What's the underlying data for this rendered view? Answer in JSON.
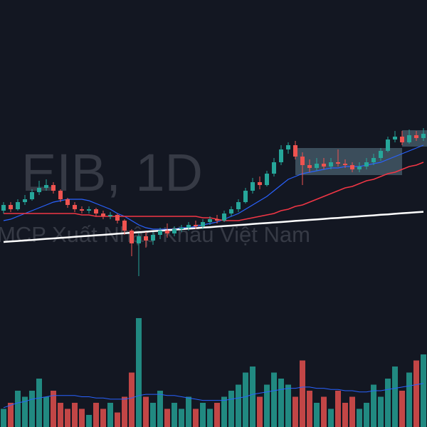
{
  "chart_data": {
    "type": "candlestick",
    "title": "EIB, 1D",
    "subtitle": "MCP Xuất Nhập Khẩu Việt Nam",
    "up_color": "#26a69a",
    "down_color": "#ef5350",
    "ylim": [
      0,
      30
    ],
    "volume_lim": [
      0,
      10
    ],
    "open": [
      15.2,
      15.6,
      15.3,
      15.8,
      16.0,
      16.5,
      16.8,
      17.0,
      16.6,
      16.0,
      15.6,
      15.3,
      15.2,
      15.3,
      15.0,
      14.8,
      14.9,
      14.5,
      13.8,
      12.9,
      13.4,
      13.1,
      13.5,
      13.8,
      13.6,
      13.9,
      14.0,
      14.2,
      14.1,
      14.4,
      14.6,
      14.5,
      15.0,
      15.3,
      15.8,
      16.6,
      17.2,
      17.0,
      17.8,
      18.6,
      19.5,
      19.8,
      19.0,
      18.4,
      18.2,
      18.5,
      18.3,
      18.6,
      18.5,
      18.4,
      18.1,
      18.3,
      18.6,
      18.9,
      19.4,
      20.2,
      20.4,
      20.0,
      20.5,
      20.3
    ],
    "high": [
      15.8,
      15.8,
      16.0,
      16.3,
      16.7,
      17.3,
      17.4,
      17.2,
      16.7,
      16.1,
      15.8,
      15.5,
      15.5,
      15.4,
      15.2,
      15.1,
      15.0,
      14.6,
      13.9,
      13.6,
      13.7,
      13.7,
      14.0,
      14.3,
      14.1,
      14.2,
      14.4,
      14.5,
      14.6,
      14.8,
      14.9,
      15.2,
      15.5,
      16.0,
      16.8,
      17.5,
      17.6,
      18.0,
      18.9,
      19.8,
      20.0,
      20.1,
      19.3,
      18.8,
      18.9,
      18.9,
      18.9,
      19.5,
      18.8,
      18.6,
      18.6,
      18.9,
      19.2,
      19.6,
      20.4,
      20.8,
      20.8,
      20.9,
      20.8,
      21.0
    ],
    "low": [
      15.0,
      15.1,
      15.2,
      15.6,
      15.9,
      16.3,
      16.6,
      16.4,
      15.8,
      15.4,
      15.1,
      15.0,
      15.0,
      14.8,
      14.6,
      14.6,
      14.3,
      13.5,
      12.0,
      10.6,
      12.6,
      12.8,
      13.2,
      13.3,
      13.4,
      13.7,
      13.8,
      13.9,
      13.9,
      14.2,
      14.3,
      14.4,
      14.8,
      15.1,
      15.7,
      16.4,
      16.7,
      16.9,
      17.6,
      18.4,
      19.2,
      18.8,
      17.0,
      17.9,
      18.0,
      18.1,
      18.1,
      18.3,
      18.2,
      17.9,
      17.9,
      18.1,
      18.4,
      18.7,
      19.3,
      20.0,
      19.8,
      19.9,
      20.1,
      20.1
    ],
    "close": [
      15.6,
      15.3,
      15.8,
      16.0,
      16.5,
      16.8,
      17.0,
      16.6,
      16.0,
      15.6,
      15.3,
      15.2,
      15.3,
      15.0,
      14.8,
      14.9,
      14.5,
      13.8,
      12.9,
      13.4,
      13.1,
      13.5,
      13.8,
      13.6,
      13.9,
      14.0,
      14.2,
      14.1,
      14.4,
      14.6,
      14.5,
      15.0,
      15.3,
      15.8,
      16.6,
      17.2,
      17.0,
      17.8,
      18.6,
      19.5,
      19.8,
      19.0,
      18.4,
      18.2,
      18.5,
      18.3,
      18.6,
      18.5,
      18.4,
      18.1,
      18.3,
      18.6,
      18.9,
      19.4,
      20.2,
      20.4,
      20.0,
      20.5,
      20.3,
      20.6
    ],
    "volume": [
      1.5,
      2,
      3,
      2.5,
      3,
      4,
      2.5,
      3,
      2,
      1.5,
      2,
      1.5,
      1,
      2,
      1.5,
      2,
      1.2,
      2.5,
      4.5,
      9,
      2.5,
      2,
      3,
      1.5,
      2,
      1.5,
      2.5,
      1.5,
      2,
      1.5,
      2,
      2.5,
      3,
      3.5,
      4.5,
      5,
      2.5,
      3.5,
      4.5,
      4,
      3.5,
      2.5,
      5.5,
      3,
      2,
      2.5,
      1.5,
      3,
      2,
      2.5,
      1.5,
      2,
      3.5,
      2.5,
      4,
      5,
      3,
      4.5,
      5.5,
      6
    ],
    "volume_ma": {
      "color": "#2962ff",
      "values": [
        1.6,
        1.8,
        2.0,
        2.1,
        2.3,
        2.4,
        2.5,
        2.6,
        2.6,
        2.6,
        2.6,
        2.5,
        2.5,
        2.4,
        2.4,
        2.3,
        2.3,
        2.3,
        2.4,
        2.6,
        2.7,
        2.7,
        2.7,
        2.6,
        2.6,
        2.5,
        2.4,
        2.3,
        2.2,
        2.2,
        2.2,
        2.2,
        2.3,
        2.4,
        2.5,
        2.7,
        2.8,
        2.9,
        3.0,
        3.1,
        3.2,
        3.2,
        3.3,
        3.3,
        3.2,
        3.2,
        3.1,
        3.1,
        3.0,
        3.0,
        2.9,
        2.9,
        3.0,
        3.0,
        3.1,
        3.2,
        3.3,
        3.4,
        3.5,
        3.6
      ]
    },
    "moving_averages": [
      {
        "color": "#2962ff",
        "width": 1.2,
        "values": [
          14.5,
          14.6,
          14.8,
          15.0,
          15.2,
          15.4,
          15.6,
          15.8,
          15.9,
          16.0,
          16.0,
          16.0,
          15.9,
          15.7,
          15.5,
          15.3,
          15.0,
          14.8,
          14.5,
          14.2,
          14.0,
          13.9,
          13.9,
          13.9,
          13.9,
          14.0,
          14.0,
          14.1,
          14.2,
          14.3,
          14.4,
          14.6,
          14.8,
          15.0,
          15.3,
          15.6,
          15.9,
          16.2,
          16.6,
          17.0,
          17.4,
          17.6,
          17.8,
          17.9,
          18.0,
          18.1,
          18.2,
          18.2,
          18.3,
          18.3,
          18.3,
          18.4,
          18.5,
          18.6,
          18.8,
          19.0,
          19.2,
          19.4,
          19.6,
          19.8
        ]
      },
      {
        "color": "#f23645",
        "width": 1.5,
        "values": [
          15.0,
          15.0,
          15.0,
          15.0,
          15.0,
          15.0,
          15.0,
          15.0,
          15.0,
          15.0,
          15.0,
          14.9,
          14.9,
          14.8,
          14.8,
          14.8,
          14.8,
          14.8,
          14.8,
          14.8,
          14.8,
          14.8,
          14.8,
          14.8,
          14.8,
          14.8,
          14.8,
          14.8,
          14.7,
          14.7,
          14.6,
          14.5,
          14.5,
          14.5,
          14.6,
          14.7,
          14.8,
          14.9,
          15.0,
          15.2,
          15.3,
          15.5,
          15.6,
          15.8,
          16.0,
          16.2,
          16.4,
          16.6,
          16.8,
          16.9,
          17.1,
          17.3,
          17.4,
          17.6,
          17.8,
          17.9,
          18.1,
          18.3,
          18.4,
          18.6
        ]
      },
      {
        "color": "#ffffff",
        "width": 2.5,
        "values": [
          13.0,
          13.04,
          13.07,
          13.11,
          13.14,
          13.18,
          13.22,
          13.25,
          13.29,
          13.32,
          13.36,
          13.4,
          13.43,
          13.47,
          13.5,
          13.54,
          13.58,
          13.61,
          13.65,
          13.68,
          13.72,
          13.76,
          13.79,
          13.83,
          13.86,
          13.9,
          13.94,
          13.97,
          14.01,
          14.04,
          14.08,
          14.12,
          14.15,
          14.19,
          14.22,
          14.26,
          14.3,
          14.33,
          14.37,
          14.4,
          14.44,
          14.48,
          14.51,
          14.55,
          14.58,
          14.62,
          14.66,
          14.69,
          14.73,
          14.76,
          14.8,
          14.84,
          14.87,
          14.91,
          14.94,
          14.98,
          15.02,
          15.05,
          15.09,
          15.12
        ]
      }
    ]
  }
}
